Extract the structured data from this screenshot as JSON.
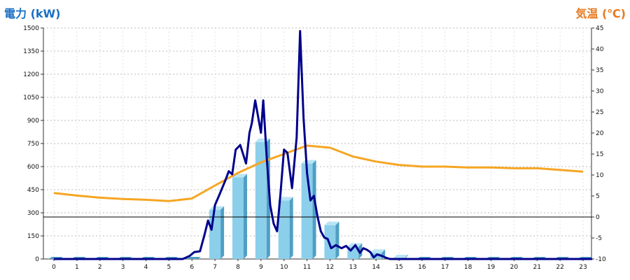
{
  "chart_data": {
    "type": "bar",
    "left_axis_title": "電力 (kW)",
    "right_axis_title": "気温 (℃)",
    "colors": {
      "left_title": "#1a6fc4",
      "right_title": "#e8781e",
      "bar_front": "#8ccfeb",
      "bar_side": "#4f9fc4",
      "bar_top": "#b9e4f6",
      "power_line": "#00008b",
      "temp_line": "#f5a623",
      "grid": "#bbbbbb",
      "zero_line": "#000000"
    },
    "grid": true,
    "x_ticks": [
      "0",
      "1",
      "2",
      "3",
      "4",
      "5",
      "6",
      "7",
      "8",
      "9",
      "10",
      "11",
      "12",
      "13",
      "14",
      "15",
      "16",
      "17",
      "18",
      "19",
      "20",
      "21",
      "22",
      "23"
    ],
    "y_left": {
      "min": 0,
      "max": 1500,
      "ticks": [
        "0",
        "150",
        "300",
        "450",
        "600",
        "750",
        "900",
        "1050",
        "1200",
        "1350",
        "1500"
      ]
    },
    "y_right": {
      "min": -10,
      "max": 45,
      "ticks": [
        "-10",
        "-5",
        "0",
        "5",
        "10",
        "15",
        "20",
        "25",
        "30",
        "35",
        "40",
        "45"
      ]
    },
    "series": [
      {
        "kind": "bar",
        "axis": "left",
        "values": [
          0,
          0,
          0,
          0,
          0,
          0,
          0,
          320,
          530,
          760,
          380,
          620,
          220,
          80,
          40,
          5,
          0,
          0,
          0,
          0,
          0,
          0,
          0,
          0
        ]
      },
      {
        "kind": "line",
        "axis": "left",
        "x": [
          0,
          1,
          2,
          3,
          4,
          5,
          5.6,
          5.9,
          6.1,
          6.35,
          6.55,
          6.7,
          6.85,
          7.0,
          7.2,
          7.45,
          7.6,
          7.75,
          7.9,
          8.1,
          8.35,
          8.5,
          8.6,
          8.75,
          9.0,
          9.1,
          9.25,
          9.4,
          9.55,
          9.7,
          9.85,
          10.0,
          10.15,
          10.35,
          10.55,
          10.7,
          10.85,
          11.0,
          11.15,
          11.3,
          11.45,
          11.6,
          11.75,
          11.9,
          12.05,
          12.25,
          12.5,
          12.7,
          12.9,
          13.1,
          13.3,
          13.45,
          13.6,
          13.75,
          13.9,
          14.05,
          14.25,
          14.4,
          14.6,
          14.75,
          14.85,
          15,
          16,
          17,
          18,
          19,
          20,
          21,
          22,
          23.4
        ],
        "values": [
          0,
          0,
          0,
          0,
          0,
          0,
          0,
          20,
          45,
          50,
          160,
          250,
          190,
          350,
          420,
          510,
          570,
          550,
          710,
          740,
          620,
          820,
          880,
          1030,
          820,
          1030,
          660,
          350,
          230,
          180,
          430,
          710,
          690,
          460,
          790,
          1480,
          920,
          560,
          380,
          410,
          280,
          180,
          140,
          130,
          70,
          90,
          70,
          85,
          55,
          90,
          40,
          70,
          60,
          45,
          10,
          30,
          20,
          10,
          0,
          0,
          0,
          0,
          0,
          0,
          0,
          0,
          0,
          0,
          0,
          0
        ]
      },
      {
        "kind": "line",
        "axis": "right",
        "x": [
          0,
          1,
          2,
          3,
          4,
          5,
          6,
          7,
          8,
          9,
          10,
          11,
          12,
          13,
          14,
          15,
          16,
          17,
          18,
          19,
          20,
          21,
          22,
          23
        ],
        "values": [
          5.7,
          5.1,
          4.6,
          4.3,
          4.1,
          3.8,
          4.4,
          7.5,
          10.5,
          13.0,
          15.0,
          17.0,
          16.5,
          14.4,
          13.2,
          12.4,
          12.0,
          12.0,
          11.8,
          11.8,
          11.6,
          11.6,
          11.2,
          10.8
        ]
      }
    ]
  }
}
